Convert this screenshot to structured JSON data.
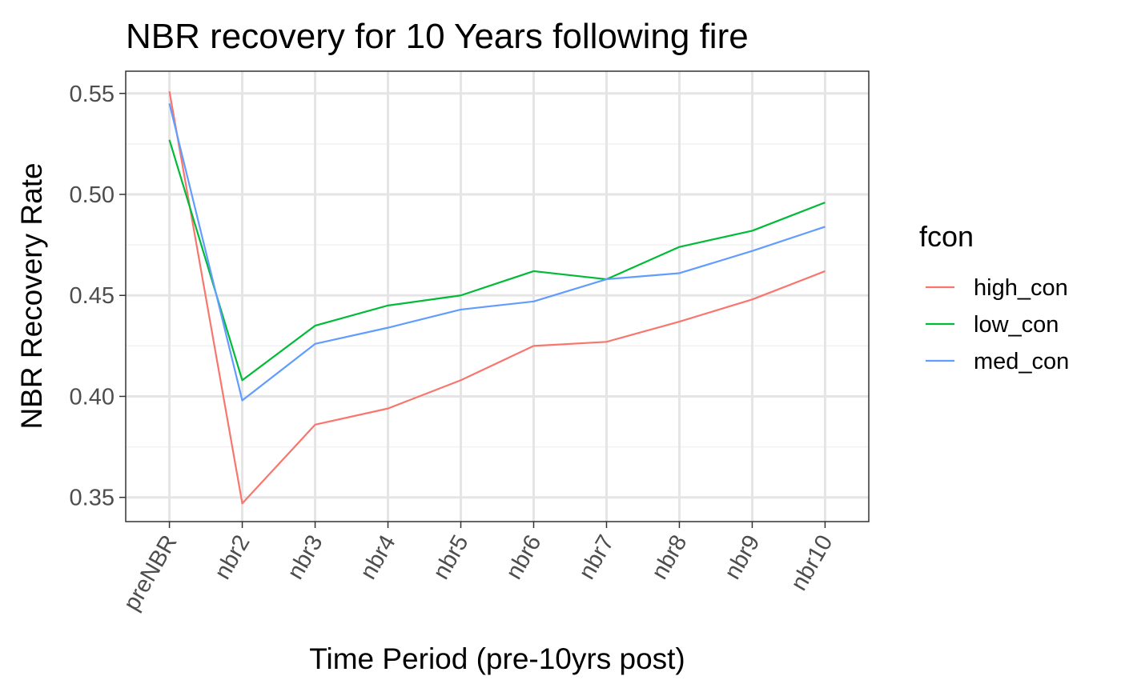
{
  "chart_data": {
    "type": "line",
    "title": "NBR recovery for 10 Years following fire",
    "xlabel": "Time Period (pre-10yrs post)",
    "ylabel": "NBR Recovery Rate",
    "categories": [
      "preNBR",
      "nbr2",
      "nbr3",
      "nbr4",
      "nbr5",
      "nbr6",
      "nbr7",
      "nbr8",
      "nbr9",
      "nbr10"
    ],
    "ylim": [
      0.338,
      0.561
    ],
    "yticks": [
      0.35,
      0.4,
      0.45,
      0.5,
      0.55
    ],
    "ytick_labels": [
      "0.35",
      "0.40",
      "0.45",
      "0.50",
      "0.55"
    ],
    "grid": true,
    "legend": {
      "title": "fcon",
      "position": "right"
    },
    "series": [
      {
        "name": "high_con",
        "color": "#F8766D",
        "values": [
          0.551,
          0.347,
          0.386,
          0.394,
          0.408,
          0.425,
          0.427,
          0.437,
          0.448,
          0.462
        ]
      },
      {
        "name": "low_con",
        "color": "#00BA38",
        "values": [
          0.527,
          0.408,
          0.435,
          0.445,
          0.45,
          0.462,
          0.458,
          0.474,
          0.482,
          0.496
        ]
      },
      {
        "name": "med_con",
        "color": "#619CFF",
        "values": [
          0.545,
          0.398,
          0.426,
          0.434,
          0.443,
          0.447,
          0.458,
          0.461,
          0.472,
          0.484
        ]
      }
    ]
  }
}
